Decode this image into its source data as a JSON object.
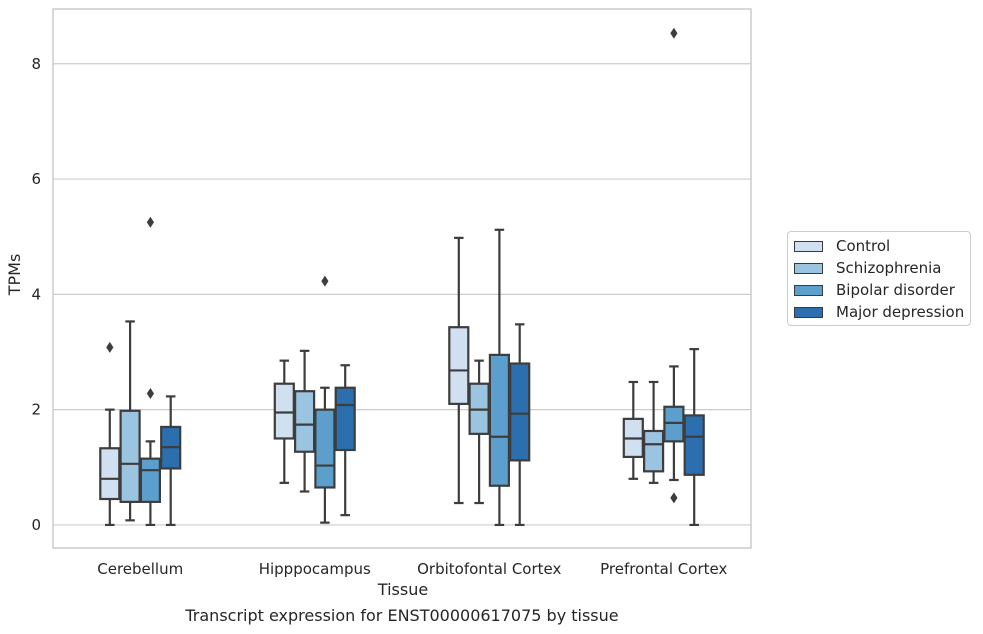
{
  "caption": "Transcript expression for ENST00000617075 by tissue",
  "chart_data": {
    "type": "boxplot",
    "xlabel": "Tissue",
    "ylabel": "TPMs",
    "ylim": [
      -0.4,
      8.95
    ],
    "yticks": [
      0,
      2,
      4,
      6,
      8
    ],
    "grid": "horizontal",
    "legend_position": "right",
    "categories": [
      "Cerebellum",
      "Hipppocampus",
      "Orbitofontal Cortex",
      "Prefrontal Cortex"
    ],
    "series": [
      {
        "name": "Control",
        "color": "#d0e0f0",
        "boxes": [
          {
            "whisker_low": 0.0,
            "q1": 0.45,
            "median": 0.8,
            "q3": 1.33,
            "whisker_high": 2.0,
            "outliers": [
              3.08
            ]
          },
          {
            "whisker_low": 0.73,
            "q1": 1.5,
            "median": 1.95,
            "q3": 2.45,
            "whisker_high": 2.85,
            "outliers": []
          },
          {
            "whisker_low": 0.38,
            "q1": 2.1,
            "median": 2.68,
            "q3": 3.43,
            "whisker_high": 4.98,
            "outliers": []
          },
          {
            "whisker_low": 0.8,
            "q1": 1.18,
            "median": 1.5,
            "q3": 1.84,
            "whisker_high": 2.48,
            "outliers": []
          }
        ]
      },
      {
        "name": "Schizophrenia",
        "color": "#9ac4e0",
        "boxes": [
          {
            "whisker_low": 0.08,
            "q1": 0.4,
            "median": 1.06,
            "q3": 1.98,
            "whisker_high": 3.53,
            "outliers": []
          },
          {
            "whisker_low": 0.58,
            "q1": 1.27,
            "median": 1.74,
            "q3": 2.32,
            "whisker_high": 3.02,
            "outliers": []
          },
          {
            "whisker_low": 0.38,
            "q1": 1.58,
            "median": 2.0,
            "q3": 2.45,
            "whisker_high": 2.85,
            "outliers": []
          },
          {
            "whisker_low": 0.73,
            "q1": 0.93,
            "median": 1.4,
            "q3": 1.63,
            "whisker_high": 2.48,
            "outliers": []
          }
        ]
      },
      {
        "name": "Bipolar disorder",
        "color": "#5c9fcc",
        "boxes": [
          {
            "whisker_low": 0.0,
            "q1": 0.4,
            "median": 0.95,
            "q3": 1.15,
            "whisker_high": 1.45,
            "outliers": [
              5.25,
              2.28
            ]
          },
          {
            "whisker_low": 0.04,
            "q1": 0.65,
            "median": 1.03,
            "q3": 2.0,
            "whisker_high": 2.38,
            "outliers": [
              4.23
            ]
          },
          {
            "whisker_low": 0.0,
            "q1": 0.68,
            "median": 1.53,
            "q3": 2.95,
            "whisker_high": 5.12,
            "outliers": []
          },
          {
            "whisker_low": 0.78,
            "q1": 1.45,
            "median": 1.77,
            "q3": 2.05,
            "whisker_high": 2.75,
            "outliers": [
              8.53,
              0.47
            ]
          }
        ]
      },
      {
        "name": "Major depression",
        "color": "#2b6fae",
        "boxes": [
          {
            "whisker_low": 0.0,
            "q1": 0.98,
            "median": 1.35,
            "q3": 1.7,
            "whisker_high": 2.23,
            "outliers": []
          },
          {
            "whisker_low": 0.17,
            "q1": 1.3,
            "median": 2.08,
            "q3": 2.38,
            "whisker_high": 2.77,
            "outliers": []
          },
          {
            "whisker_low": 0.0,
            "q1": 1.12,
            "median": 1.93,
            "q3": 2.8,
            "whisker_high": 3.48,
            "outliers": []
          },
          {
            "whisker_low": 0.0,
            "q1": 0.87,
            "median": 1.53,
            "q3": 1.9,
            "whisker_high": 3.05,
            "outliers": []
          }
        ]
      }
    ]
  }
}
